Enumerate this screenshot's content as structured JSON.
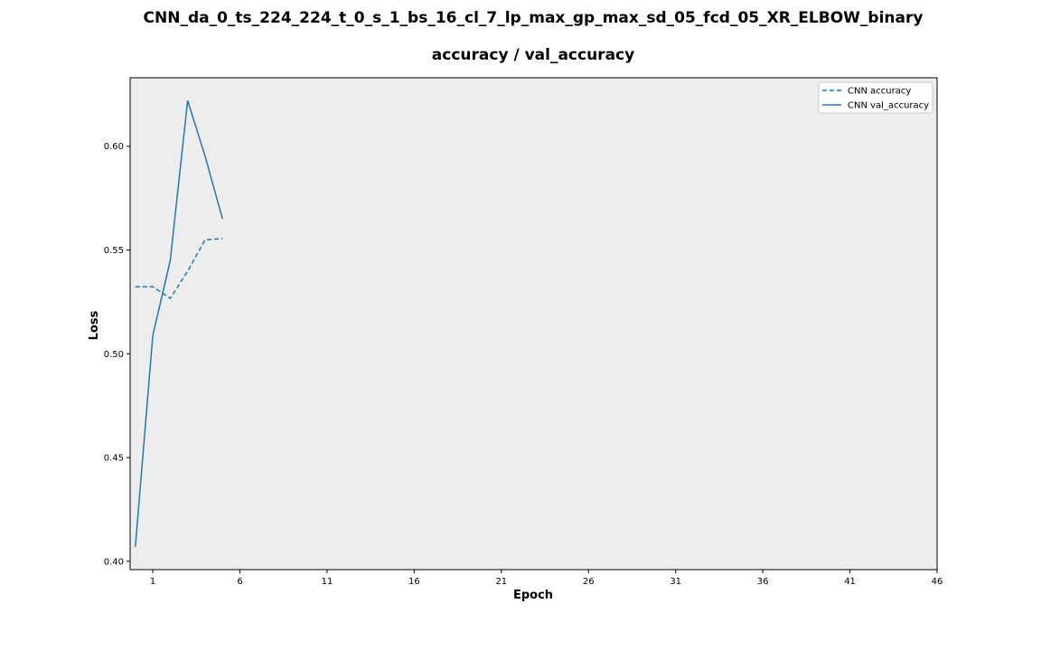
{
  "chart_data": {
    "type": "line",
    "title": "CNN_da_0_ts_224_224_t_0_s_1_bs_16_cl_7_lp_max_gp_max_sd_05_fcd_05_XR_ELBOW_binary",
    "subtitle": "accuracy / val_accuracy",
    "xlabel": "Epoch",
    "ylabel": "Loss",
    "x": [
      0,
      1,
      2,
      3,
      4,
      5
    ],
    "xlim": [
      -0.3,
      46
    ],
    "ylim": [
      0.396,
      0.633
    ],
    "x_ticks": [
      1,
      6,
      11,
      16,
      21,
      26,
      31,
      36,
      41,
      46
    ],
    "y_ticks": [
      0.4,
      0.45,
      0.5,
      0.55,
      0.6
    ],
    "y_tick_labels": [
      "0.40",
      "0.45",
      "0.50",
      "0.55",
      "0.60"
    ],
    "grid": false,
    "background": "#ededed",
    "legend_position": "top-right",
    "series": [
      {
        "name": "CNN accuracy",
        "style": "dashed",
        "color": "#1f77b4",
        "values": [
          0.5323,
          0.5323,
          0.5267,
          0.5398,
          0.5549,
          0.5555
        ]
      },
      {
        "name": "CNN val_accuracy",
        "style": "solid",
        "color": "#1f77b4",
        "values": [
          0.407,
          0.5088,
          0.5448,
          0.622,
          0.5953,
          0.565
        ]
      }
    ]
  }
}
